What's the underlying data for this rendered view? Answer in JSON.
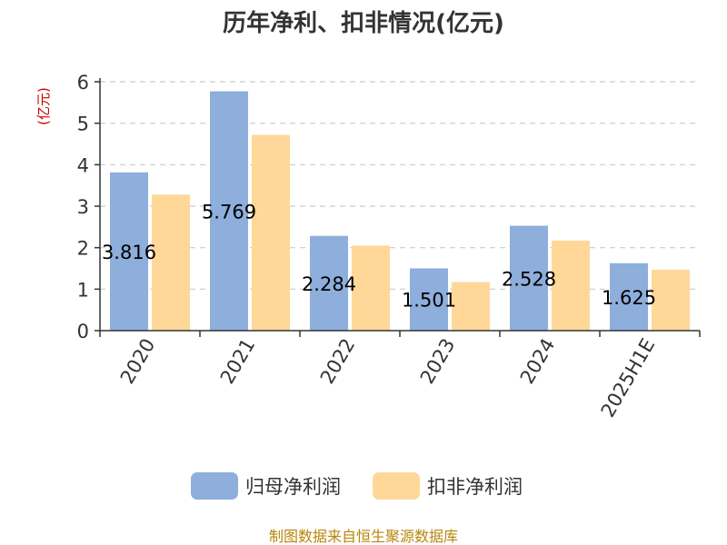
{
  "chart_data": {
    "type": "bar",
    "title": "历年净利、扣非情况(亿元)",
    "unit_label": "(亿元)",
    "categories": [
      "2020",
      "2021",
      "2022",
      "2023",
      "2024",
      "2025H1E"
    ],
    "series": [
      {
        "name": "归母净利润",
        "color": "#8eaedb",
        "values": [
          3.816,
          5.769,
          2.284,
          1.501,
          2.528,
          1.625
        ],
        "labels": [
          "3.816",
          "5.769",
          "2.284",
          "1.501",
          "2.528",
          "1.625"
        ]
      },
      {
        "name": "扣非净利润",
        "color": "#ffd899",
        "values": [
          3.28,
          4.72,
          2.05,
          1.17,
          2.17,
          1.47
        ]
      }
    ],
    "ylim": [
      0,
      6
    ],
    "yticks": [
      "0",
      "1",
      "2",
      "3",
      "4",
      "5",
      "6"
    ],
    "grid": true,
    "legend_position": "bottom"
  },
  "footer": {
    "source": "制图数据来自恒生聚源数据库"
  },
  "colors": {
    "unit_label": "#cc0000",
    "source": "#b8860b",
    "axis": "#333333",
    "grid": "#cccccc"
  }
}
